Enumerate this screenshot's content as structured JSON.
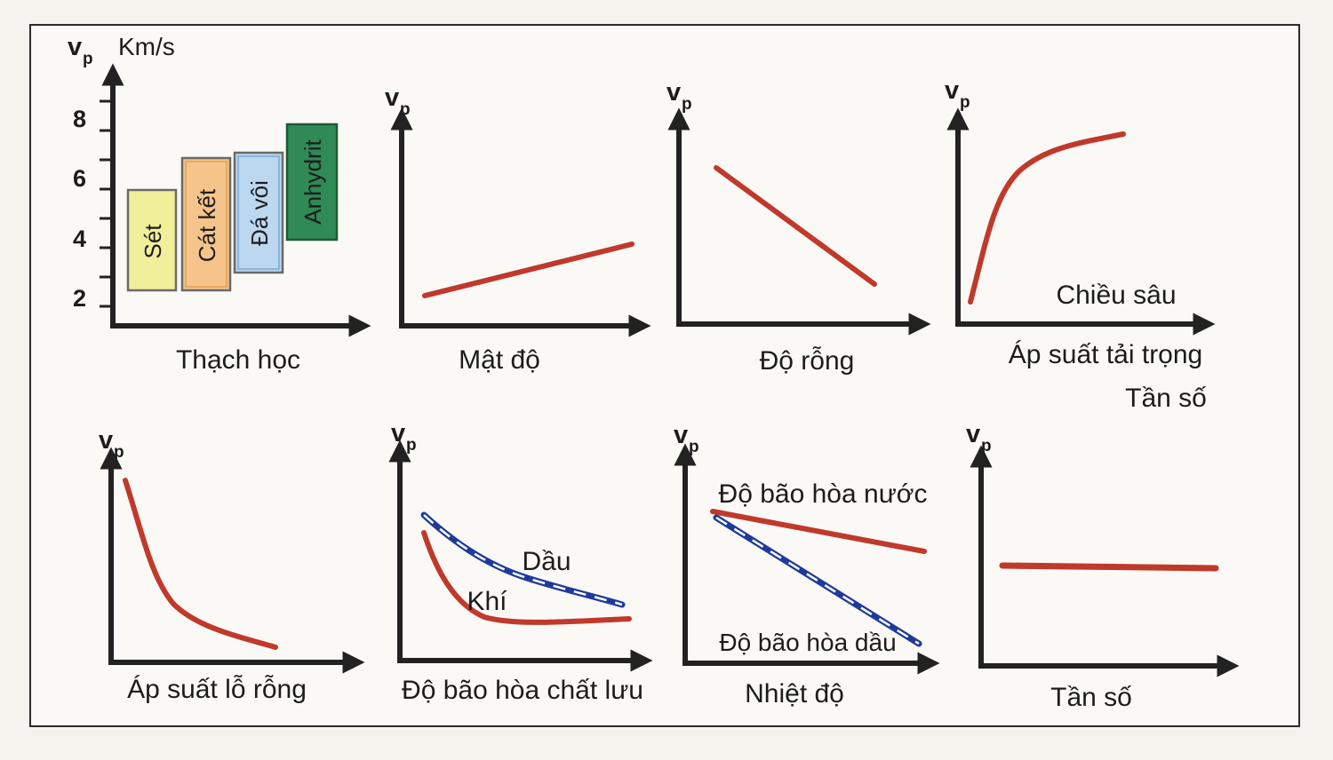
{
  "y_axis_label": "v",
  "y_axis_subscript": "p",
  "panel1": {
    "unit": "Km/s",
    "ticks": [
      "8",
      "6",
      "4",
      "2"
    ],
    "xlabel": "Thạch học",
    "blocks": [
      {
        "label": "Sét",
        "fill": "#f2ef9a",
        "stroke": "#7a7a55"
      },
      {
        "label": "Cát kết",
        "fill": "#f5c48a",
        "stroke": "#7a6a50"
      },
      {
        "label": "Đá vôi",
        "fill": "#bcd7f0",
        "stroke": "#5a6a7a"
      },
      {
        "label": "Anhydrit",
        "fill": "#2f8a55",
        "stroke": "#1d5a36"
      }
    ]
  },
  "panel2": {
    "xlabel": "Mật độ"
  },
  "panel3": {
    "xlabel": "Độ rỗng"
  },
  "panel4": {
    "inner_label": "Chiều sâu",
    "xlabel_line1": "Áp suất tải trọng",
    "xlabel_line2": "Tần số"
  },
  "panel5": {
    "xlabel": "Áp suất lỗ rỗng"
  },
  "panel6": {
    "xlabel": "Độ bão hòa chất lưu",
    "curve_oil": "Dầu",
    "curve_gas": "Khí"
  },
  "panel7": {
    "xlabel": "Nhiệt độ",
    "curve_water": "Độ bão hòa nước",
    "curve_oil": "Độ bão hòa dầu"
  },
  "panel8": {
    "xlabel": "Tần số"
  },
  "colors": {
    "curve_red": "#c0392b",
    "curve_blue": "#1f3a9c",
    "axis": "#222222"
  }
}
